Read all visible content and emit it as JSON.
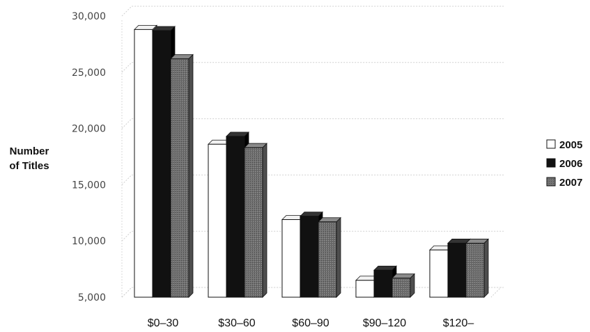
{
  "chart_data": {
    "type": "bar",
    "ylabel_lines": [
      "Number",
      "of Titles"
    ],
    "categories": [
      "$0–30",
      "$30–60",
      "$60–90",
      "$90–120",
      "$120–"
    ],
    "series": [
      {
        "name": "2005",
        "values": [
          28800,
          18600,
          11900,
          6500,
          9200
        ],
        "color": "#ffffff"
      },
      {
        "name": "2006",
        "values": [
          28700,
          19300,
          12200,
          7400,
          9800
        ],
        "color": "#111111"
      },
      {
        "name": "2007",
        "values": [
          26200,
          18300,
          11700,
          6700,
          9800
        ],
        "color": "#7a7a7a"
      }
    ],
    "ylim": [
      5000,
      30000
    ],
    "yticks": [
      {
        "value": 5000,
        "label": "5,000"
      },
      {
        "value": 10000,
        "label": "10,000"
      },
      {
        "value": 15000,
        "label": "15,000"
      },
      {
        "value": 20000,
        "label": "20,000"
      },
      {
        "value": 25000,
        "label": "25,000"
      },
      {
        "value": 30000,
        "label": "30,000"
      }
    ],
    "grid": true,
    "legend_position": "right"
  }
}
